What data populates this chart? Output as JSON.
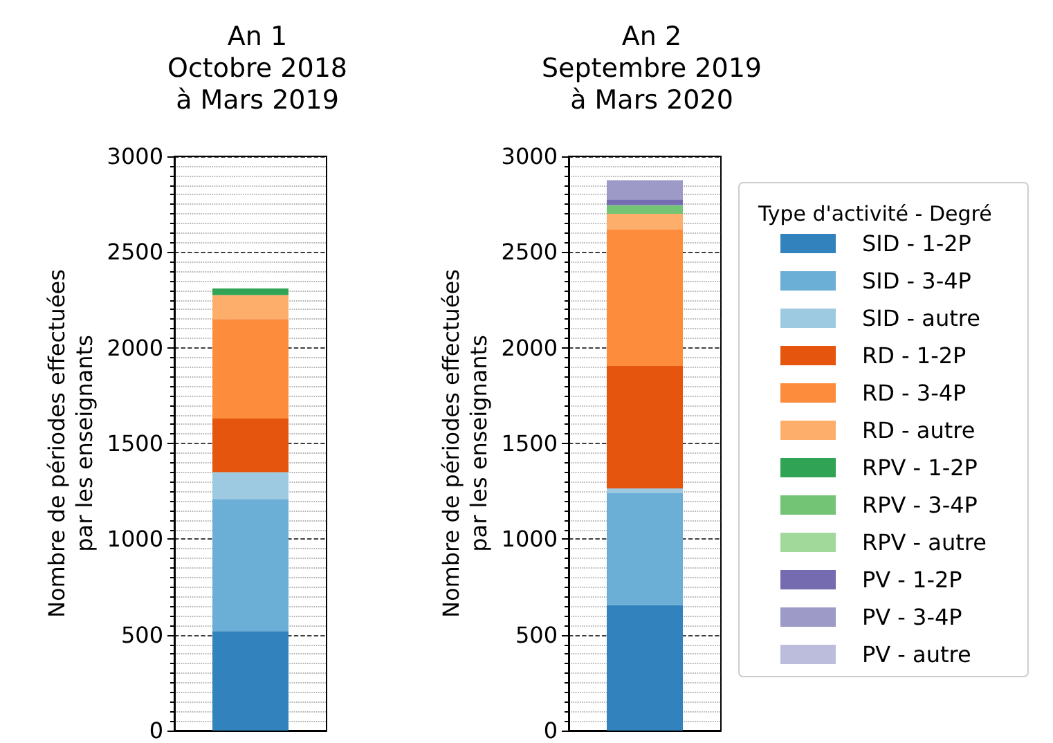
{
  "chart_data": [
    {
      "type": "bar",
      "title": "An 1\nOctobre 2018\nà Mars 2019",
      "ylabel": "Nombre de périodes effectuées\npar les enseignants",
      "categories": [
        null
      ],
      "stacked": true,
      "ylim": [
        0,
        3000
      ],
      "yticks": [
        0,
        500,
        1000,
        1500,
        2000,
        2500,
        3000
      ],
      "grid": "y",
      "legend": false,
      "series": [
        {
          "color": "#3182bd",
          "values": [
            520
          ]
        },
        {
          "color": "#6baed6",
          "values": [
            690
          ]
        },
        {
          "color": "#9ecae1",
          "values": [
            140
          ]
        },
        {
          "color": "#e6550d",
          "values": [
            280
          ]
        },
        {
          "color": "#fd8d3c",
          "values": [
            520
          ]
        },
        {
          "color": "#fdae6b",
          "values": [
            125
          ]
        },
        {
          "color": "#31a354",
          "values": [
            35
          ]
        },
        {
          "color": "#74c476",
          "values": [
            0
          ]
        },
        {
          "color": "#a1d99b",
          "values": [
            0
          ]
        },
        {
          "color": "#756bb1",
          "values": [
            0
          ]
        },
        {
          "color": "#9e9ac8",
          "values": [
            0
          ]
        },
        {
          "color": "#bcbddc",
          "values": [
            0
          ]
        }
      ]
    },
    {
      "type": "bar",
      "title": "An 2\nSeptembre 2019\nà Mars 2020",
      "ylabel": "Nombre de périodes effectuées\npar les enseignants",
      "categories": [
        null
      ],
      "stacked": true,
      "ylim": [
        0,
        3000
      ],
      "yticks": [
        0,
        500,
        1000,
        1500,
        2000,
        2500,
        3000
      ],
      "grid": "y",
      "legend": "right",
      "legend_title": "Type d'activité - Degré",
      "series": [
        {
          "name": "SID - 1-2P",
          "color": "#3182bd",
          "values": [
            655
          ]
        },
        {
          "name": "SID - 3-4P",
          "color": "#6baed6",
          "values": [
            585
          ]
        },
        {
          "name": "SID - autre",
          "color": "#9ecae1",
          "values": [
            25
          ]
        },
        {
          "name": "RD - 1-2P",
          "color": "#e6550d",
          "values": [
            640
          ]
        },
        {
          "name": "RD - 3-4P",
          "color": "#fd8d3c",
          "values": [
            715
          ]
        },
        {
          "name": "RD - autre",
          "color": "#fdae6b",
          "values": [
            80
          ]
        },
        {
          "name": "RPV - 1-2P",
          "color": "#31a354",
          "values": [
            0
          ]
        },
        {
          "name": "RPV - 3-4P",
          "color": "#74c476",
          "values": [
            45
          ]
        },
        {
          "name": "RPV - autre",
          "color": "#a1d99b",
          "values": [
            0
          ]
        },
        {
          "name": "PV - 1-2P",
          "color": "#756bb1",
          "values": [
            30
          ]
        },
        {
          "name": "PV - 3-4P",
          "color": "#9e9ac8",
          "values": [
            100
          ]
        },
        {
          "name": "PV - autre",
          "color": "#bcbddc",
          "values": [
            0
          ]
        }
      ]
    }
  ]
}
